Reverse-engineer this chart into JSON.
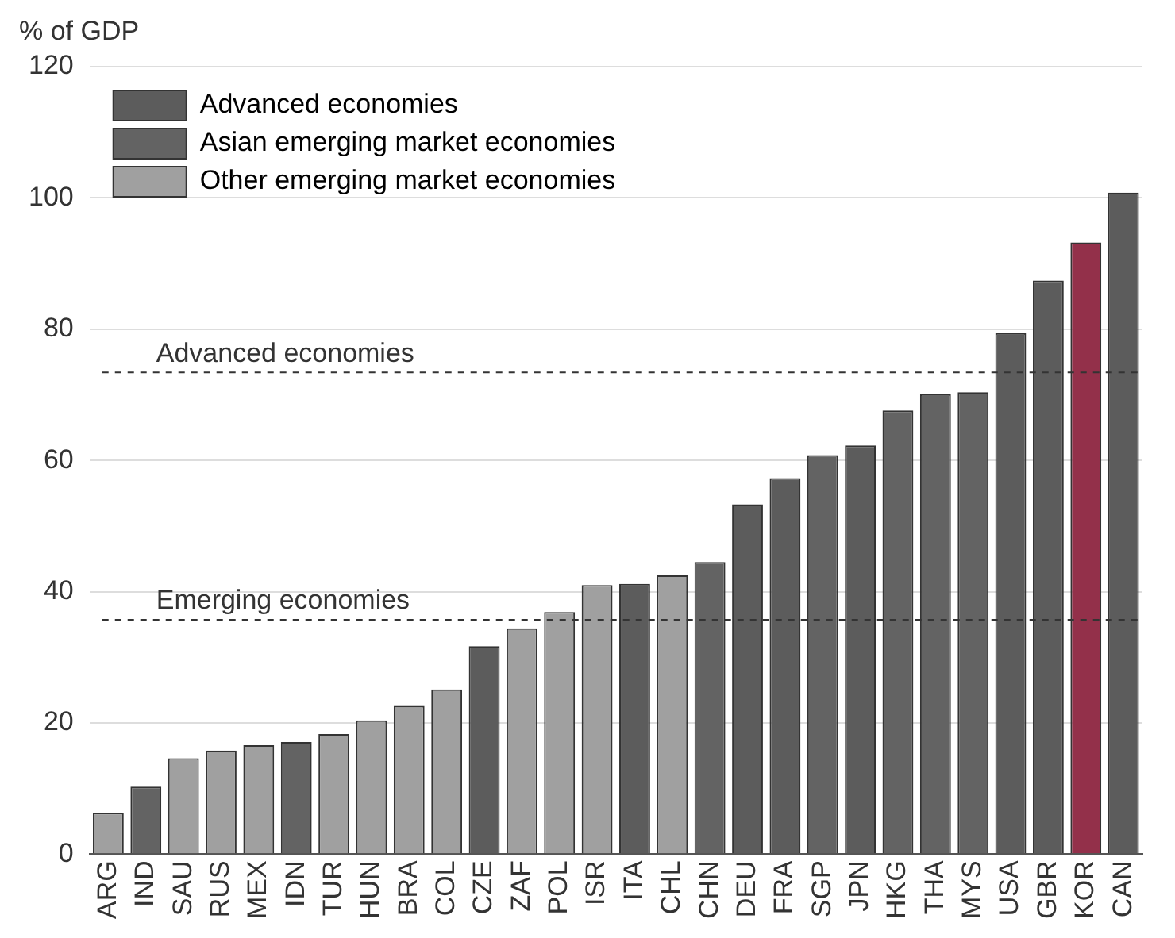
{
  "chart_data": {
    "type": "bar",
    "ylabel": "% of GDP",
    "categories": [
      "ARG",
      "IND",
      "SAU",
      "RUS",
      "MEX",
      "IDN",
      "TUR",
      "HUN",
      "BRA",
      "COL",
      "CZE",
      "ZAF",
      "POL",
      "ISR",
      "ITA",
      "CHL",
      "CHN",
      "DEU",
      "FRA",
      "SGP",
      "JPN",
      "HKG",
      "THA",
      "MYS",
      "USA",
      "GBR",
      "KOR",
      "CAN"
    ],
    "stacked": true,
    "series": [
      {
        "name": "Advanced economies",
        "color": "#5c5c5c",
        "values": [
          null,
          null,
          null,
          null,
          null,
          null,
          null,
          null,
          null,
          null,
          31.7,
          null,
          null,
          null,
          41.2,
          null,
          null,
          53.3,
          57.3,
          null,
          62.3,
          null,
          null,
          null,
          79.4,
          87.4,
          null,
          100.8
        ]
      },
      {
        "name": "Asian emerging market economies",
        "color": "#636363",
        "colors": [
          "#636363",
          "#636363",
          "#636363",
          "#636363",
          "#636363",
          "#636363",
          "#636363",
          "#636363",
          "#636363",
          "#636363",
          "#636363",
          "#636363",
          "#636363",
          "#636363",
          "#636363",
          "#636363",
          "#636363",
          "#636363",
          "#636363",
          "#636363",
          "#636363",
          "#636363",
          "#636363",
          "#636363",
          "#636363",
          "#636363",
          "#93304a",
          "#636363"
        ],
        "values": [
          null,
          10.3,
          null,
          null,
          null,
          17.1,
          null,
          null,
          null,
          null,
          null,
          null,
          null,
          null,
          null,
          null,
          44.5,
          null,
          null,
          60.8,
          null,
          67.6,
          70.1,
          70.4,
          null,
          null,
          93.2,
          null
        ]
      },
      {
        "name": "Other emerging market economies",
        "color": "#a0a0a0",
        "values": [
          6.3,
          null,
          14.6,
          15.8,
          16.6,
          null,
          18.3,
          20.4,
          22.6,
          25.1,
          null,
          34.4,
          36.9,
          41.0,
          null,
          42.5,
          null,
          null,
          null,
          null,
          null,
          null,
          null,
          null,
          null,
          null,
          null,
          null
        ]
      }
    ],
    "ylim": [
      0,
      120
    ],
    "yticks": [
      0,
      20,
      40,
      60,
      80,
      100,
      120
    ],
    "grid": "y",
    "legend": "top left",
    "ref_lines": [
      {
        "axis": "y",
        "value": 73.4,
        "label": "Advanced economies",
        "line_style": "dashed"
      },
      {
        "axis": "y",
        "value": 35.7,
        "label": "Emerging economies",
        "line_style": "dashed"
      }
    ]
  }
}
